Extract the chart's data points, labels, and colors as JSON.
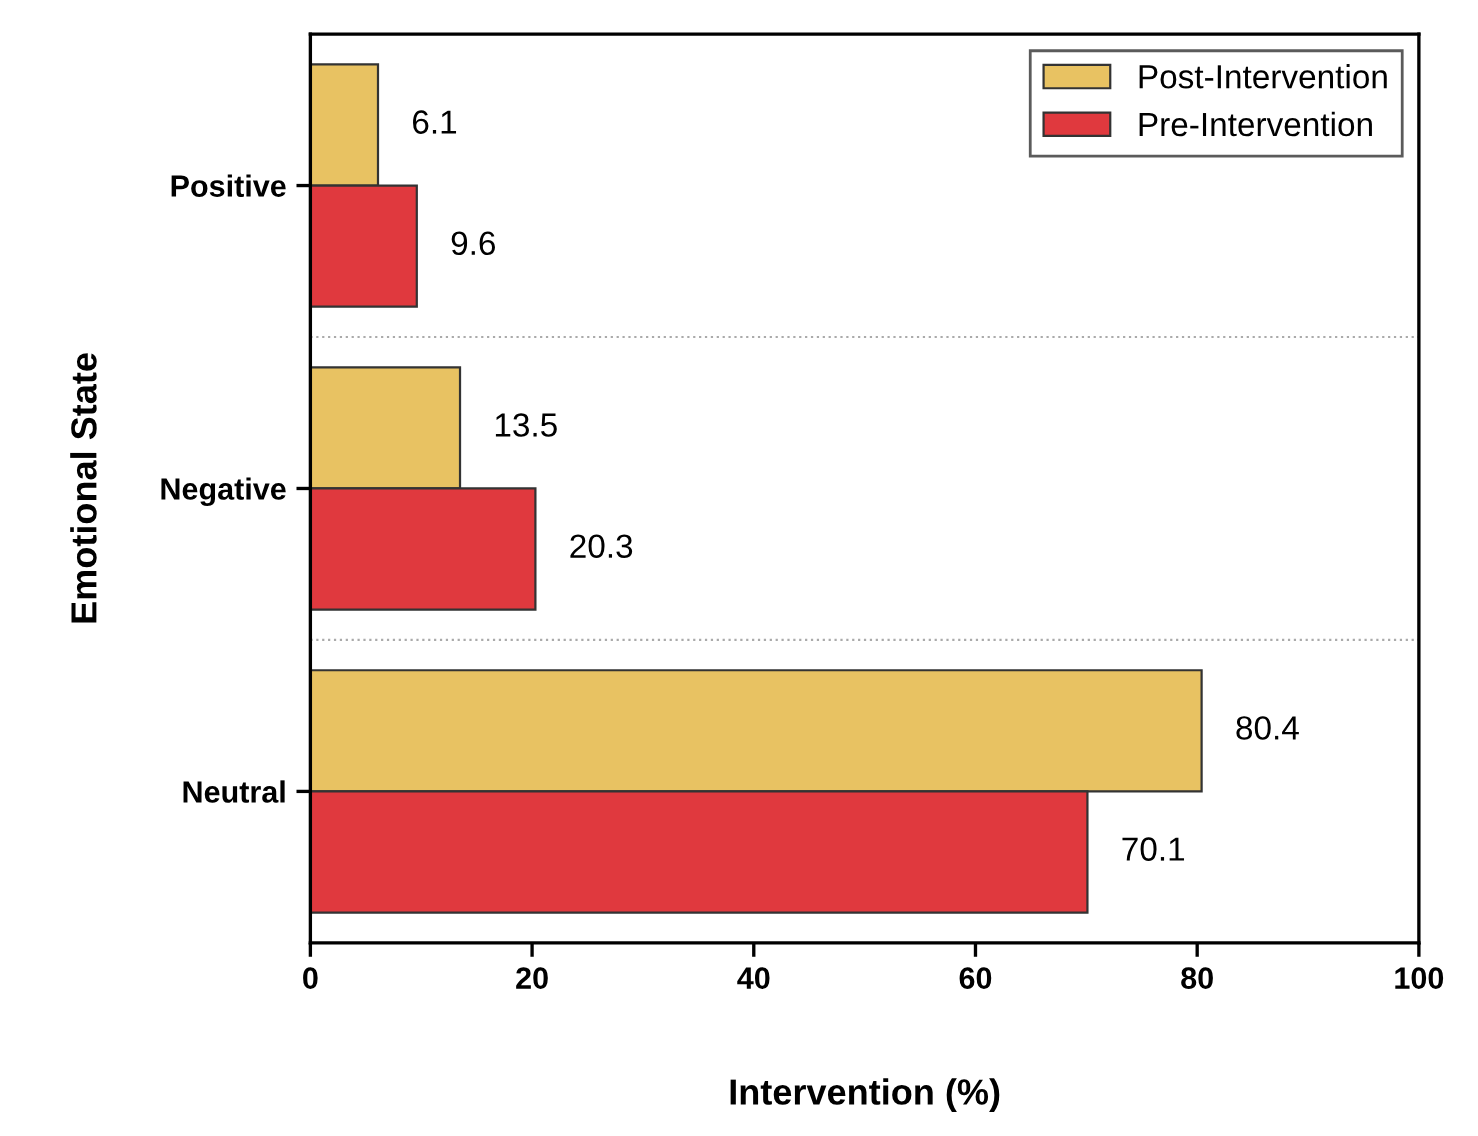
{
  "chart_data": {
    "type": "bar",
    "orientation": "horizontal",
    "xlabel": "Intervention (%)",
    "ylabel": "Emotional State",
    "categories": [
      "Positive",
      "Negative",
      "Neutral"
    ],
    "series": [
      {
        "name": "Post-Intervention",
        "color": "#e8c262",
        "values": [
          6.1,
          13.5,
          80.4
        ]
      },
      {
        "name": "Pre-Intervention",
        "color": "#e0393e",
        "values": [
          9.6,
          20.3,
          70.1
        ]
      }
    ],
    "xlim": [
      0,
      100
    ],
    "xticks": [
      0,
      20,
      40,
      60,
      80,
      100
    ],
    "data_labels": true,
    "legend": "top right",
    "grid": "y"
  }
}
